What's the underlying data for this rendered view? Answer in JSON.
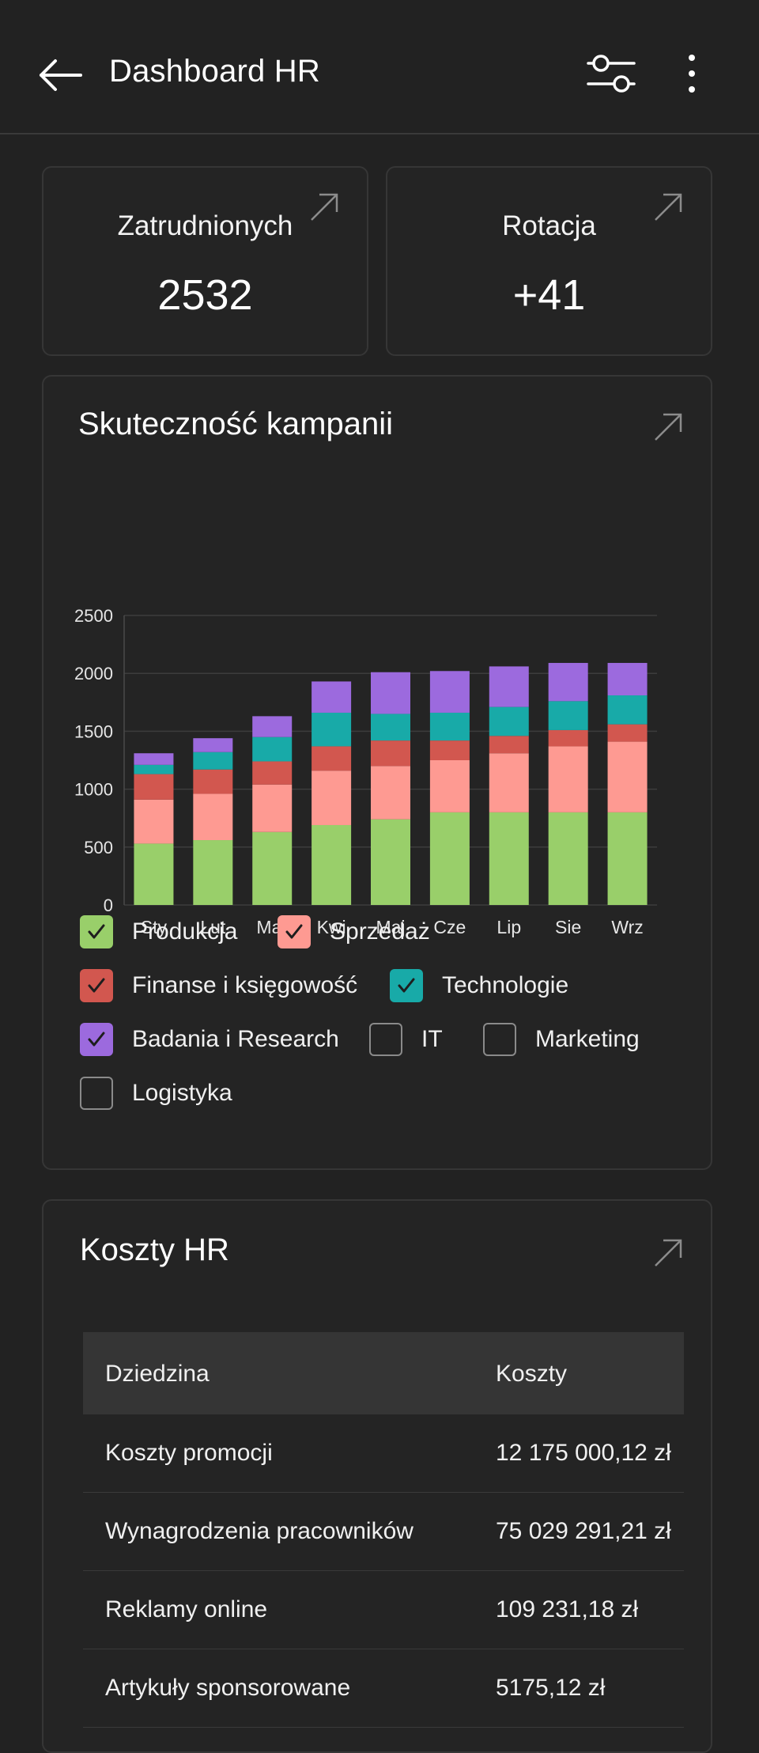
{
  "header": {
    "title": "Dashboard HR",
    "back_icon": "arrow-left-icon",
    "filter_icon": "sliders-icon",
    "more_icon": "more-vertical-icon"
  },
  "stats": [
    {
      "label": "Zatrudnionych",
      "value": "2532"
    },
    {
      "label": "Rotacja",
      "value": "+41"
    }
  ],
  "campaign": {
    "title": "Skuteczność kampanii"
  },
  "chart_data": {
    "type": "bar",
    "stacked": true,
    "categories": [
      "Sty",
      "Lut",
      "Mar",
      "Kwi",
      "Maj",
      "Cze",
      "Lip",
      "Sie",
      "Wrz"
    ],
    "ylim": [
      0,
      2500
    ],
    "yticks": [
      0,
      500,
      1000,
      1500,
      2000,
      2500
    ],
    "grid": true,
    "series": [
      {
        "name": "Produkcja",
        "color": "#99cf6a",
        "values": [
          530,
          560,
          630,
          690,
          740,
          800,
          800,
          800,
          800
        ]
      },
      {
        "name": "Sprzedaż",
        "color": "#fe9a92",
        "values": [
          380,
          400,
          410,
          470,
          460,
          450,
          510,
          570,
          610
        ]
      },
      {
        "name": "Finanse i księgowość",
        "color": "#d2574f",
        "values": [
          220,
          210,
          200,
          210,
          220,
          170,
          150,
          140,
          150
        ]
      },
      {
        "name": "Technologie",
        "color": "#18aaa8",
        "values": [
          80,
          150,
          210,
          290,
          230,
          240,
          250,
          250,
          250
        ]
      },
      {
        "name": "Badania i Research",
        "color": "#9c6ade",
        "values": [
          100,
          120,
          180,
          270,
          360,
          360,
          350,
          330,
          280
        ]
      }
    ]
  },
  "legend": [
    {
      "label": "Produkcja",
      "checked": true,
      "color": "#99cf6a"
    },
    {
      "label": "Sprzedaż",
      "checked": true,
      "color": "#fe9a92"
    },
    {
      "label": "Finanse i księgowość",
      "checked": true,
      "color": "#d2574f"
    },
    {
      "label": "Technologie",
      "checked": true,
      "color": "#18aaa8"
    },
    {
      "label": "Badania i Research",
      "checked": true,
      "color": "#9c6ade"
    },
    {
      "label": "IT",
      "checked": false,
      "color": ""
    },
    {
      "label": "Marketing",
      "checked": false,
      "color": ""
    },
    {
      "label": "Logistyka",
      "checked": false,
      "color": ""
    }
  ],
  "costs": {
    "title": "Koszty HR",
    "columns": [
      "Dziedzina",
      "Koszty"
    ],
    "rows": [
      {
        "domain": "Koszty promocji",
        "cost": "12 175 000,12 zł"
      },
      {
        "domain": "Wynagrodzenia pracowników",
        "cost": "75 029 291,21 zł"
      },
      {
        "domain": "Reklamy online",
        "cost": "109 231,18 zł"
      },
      {
        "domain": "Artykuły sponsorowane",
        "cost": "5175,12 zł"
      }
    ]
  }
}
